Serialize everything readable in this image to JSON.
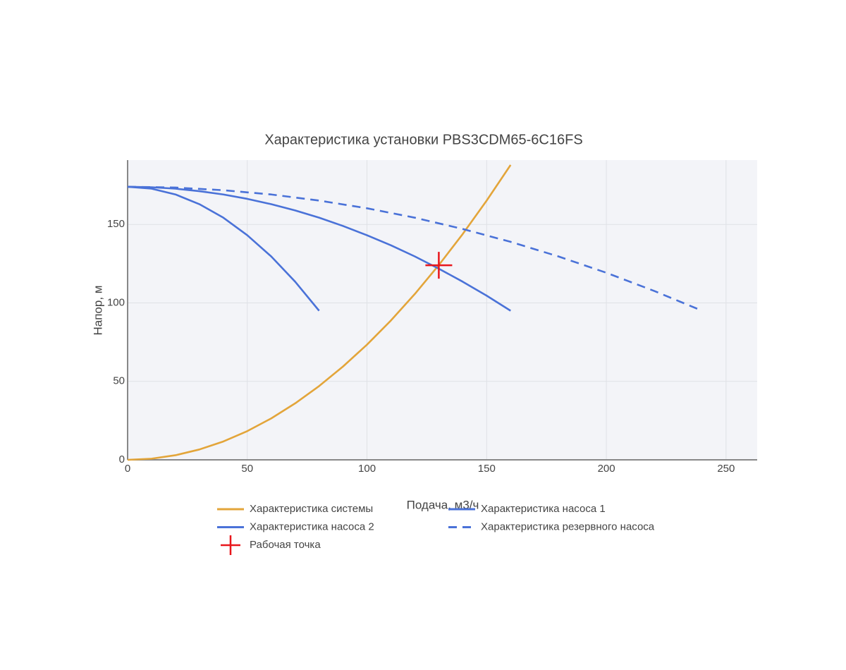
{
  "chart_data": {
    "type": "line",
    "title": "Характеристика установки PBS3CDM65-6C16FS",
    "x_label": "Подача, м3/ч",
    "y_label": "Напор, м",
    "xlim": [
      0,
      263
    ],
    "ylim": [
      0,
      191
    ],
    "xticks": [
      0,
      50,
      100,
      150,
      200,
      250
    ],
    "yticks": [
      0,
      50,
      100,
      150
    ],
    "grid": true,
    "legend": "bottom",
    "series": [
      {
        "name": "Характеристика системы",
        "color": "#e3a53a",
        "x": [
          0,
          10,
          20,
          30,
          40,
          50,
          60,
          70,
          80,
          90,
          100,
          110,
          120,
          130,
          140,
          150,
          160
        ],
        "values": [
          0,
          0.73,
          2.94,
          6.6,
          11.7,
          18.3,
          26.4,
          36.0,
          47.0,
          59.5,
          73.4,
          88.8,
          105.7,
          124.1,
          143.9,
          165.2,
          187.9
        ]
      },
      {
        "name": "Характеристика насоса 1",
        "color": "#4a72d8",
        "x": [
          0,
          10,
          20,
          30,
          40,
          50,
          60,
          70,
          80,
          90,
          100,
          110,
          120,
          130,
          140,
          150,
          160
        ],
        "values": [
          174,
          173.7,
          172.8,
          171.2,
          169.1,
          166.3,
          162.9,
          158.9,
          154.3,
          149.0,
          143.1,
          136.7,
          129.6,
          121.8,
          113.5,
          104.6,
          95
        ]
      },
      {
        "name": "Характеристика насоса 2",
        "color": "#4a72d8",
        "x": [
          0,
          10,
          20,
          30,
          40,
          50,
          60,
          70,
          80
        ],
        "values": [
          174,
          172.8,
          169.1,
          162.9,
          154.3,
          143.1,
          129.6,
          113.5,
          95
        ]
      },
      {
        "name": "Характеристика резервного насоса",
        "color": "#4a72d8",
        "dash": true,
        "x": [
          0,
          20,
          40,
          60,
          80,
          100,
          120,
          140,
          160,
          180,
          200,
          220,
          240
        ],
        "values": [
          174,
          173.5,
          171.8,
          169.1,
          165.2,
          160.3,
          154.3,
          147.1,
          138.9,
          129.6,
          119.2,
          107.6,
          95
        ]
      },
      {
        "name": "Рабочая точка",
        "color": "#e8161b",
        "marker": "cross",
        "x": [
          130
        ],
        "values": [
          124
        ]
      }
    ]
  }
}
